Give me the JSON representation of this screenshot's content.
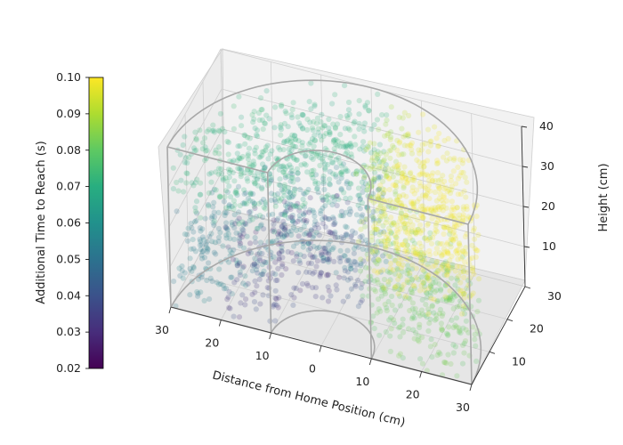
{
  "chart_data": {
    "type": "scatter",
    "projection": "3d",
    "title": "",
    "xlabel": "Distance from Home Position (cm)",
    "ylabel": "",
    "zlabel": "Height (cm)",
    "x_ticks": [
      "30",
      "20",
      "10",
      "0",
      "10",
      "20",
      "30"
    ],
    "y_ticks": [
      "10",
      "20",
      "30"
    ],
    "z_ticks": [
      "10",
      "20",
      "30",
      "40"
    ],
    "xlim": [
      -30,
      30
    ],
    "ylim": [
      0,
      30
    ],
    "zlim": [
      0,
      40
    ],
    "grid": true,
    "colorbar": {
      "label": "Additional Time to Reach (s)",
      "colormap": "viridis",
      "range": [
        0.02,
        0.1
      ],
      "ticks": [
        "0.02",
        "0.03",
        "0.04",
        "0.05",
        "0.06",
        "0.07",
        "0.08",
        "0.09",
        "0.10"
      ]
    },
    "workspace": {
      "shape": "half-annulus",
      "inner_radius": 10,
      "outer_radius": 30,
      "height": 40
    },
    "value_regions": [
      {
        "region": "inner radius 10-20 cm, height 0-20 cm, left side",
        "value": 0.035
      },
      {
        "region": "inner radius 10-20 cm, height 0-20 cm, center",
        "value": 0.05
      },
      {
        "region": "outer radius 20-30 cm, height 0-20 cm, left side",
        "value": 0.055
      },
      {
        "region": "upper layer height 20-40 cm, left side",
        "value": 0.07
      },
      {
        "region": "right side, upper layer",
        "value": 0.1
      },
      {
        "region": "right side, lower layer",
        "value": 0.08
      }
    ],
    "point_alpha": 0.22
  }
}
